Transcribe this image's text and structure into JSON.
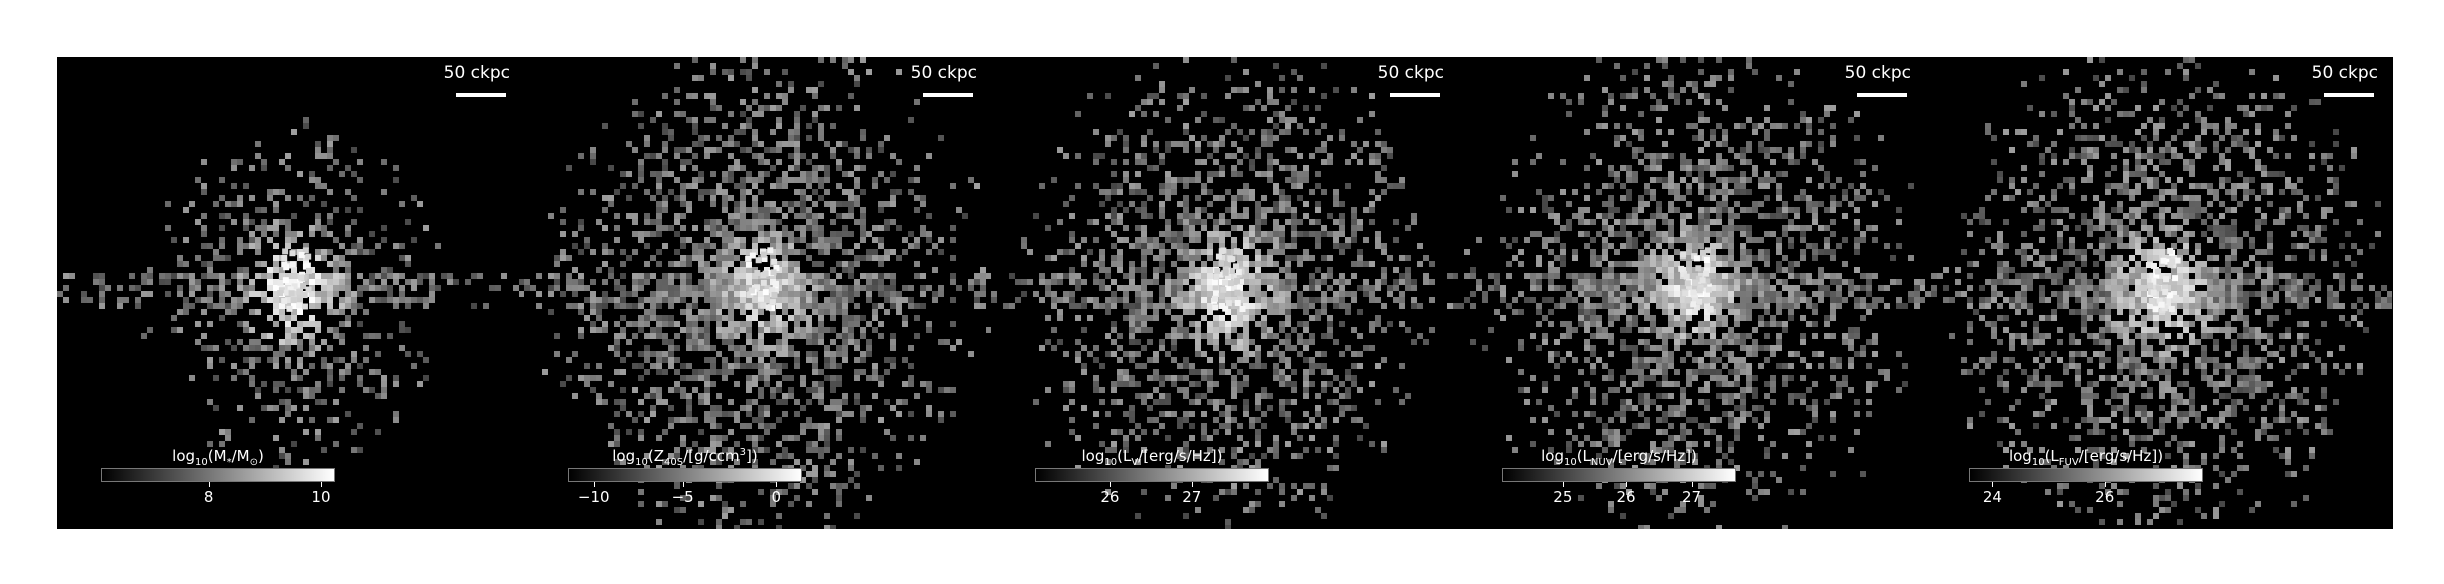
{
  "scale_bar_label": "50 ckpc",
  "panels": [
    {
      "id": "stellar-mass",
      "colorbar_label": {
        "pre": "log",
        "sub": "10",
        "mid": "(M",
        "mid_sub": "*",
        "post": "/M",
        "post_sub": "⊙",
        "end": ")"
      },
      "ticks": [
        {
          "label": "8",
          "pos": 0.46
        },
        {
          "label": "10",
          "pos": 0.94
        }
      ],
      "seed": 11,
      "spread": 0.55,
      "core": 1.0
    },
    {
      "id": "metallicity",
      "colorbar_label": {
        "pre": "log",
        "sub": "10",
        "mid": "(Z",
        "mid_sub": "40S",
        "post": "/[g/ccm",
        "post_sup": "3",
        "end": "])"
      },
      "ticks": [
        {
          "label": "−10",
          "pos": 0.11
        },
        {
          "label": "−5",
          "pos": 0.49
        },
        {
          "label": "0",
          "pos": 0.89
        }
      ],
      "seed": 23,
      "spread": 0.9,
      "core": 0.75
    },
    {
      "id": "luminosity-v",
      "colorbar_label": {
        "pre": "log",
        "sub": "10",
        "mid": "(L",
        "mid_sub": "V",
        "post": "/[erg/s/Hz])",
        "end": ""
      },
      "ticks": [
        {
          "label": "26",
          "pos": 0.32
        },
        {
          "label": "27",
          "pos": 0.67
        }
      ],
      "seed": 37,
      "spread": 0.85,
      "core": 0.95
    },
    {
      "id": "luminosity-nuv",
      "colorbar_label": {
        "pre": "log",
        "sub": "10",
        "mid": "(L",
        "mid_sub": "NUV",
        "post": "/[erg/s/Hz])",
        "end": ""
      },
      "ticks": [
        {
          "label": "25",
          "pos": 0.26
        },
        {
          "label": "26",
          "pos": 0.53
        },
        {
          "label": "27",
          "pos": 0.81
        }
      ],
      "seed": 53,
      "spread": 0.9,
      "core": 0.85
    },
    {
      "id": "luminosity-fuv",
      "colorbar_label": {
        "pre": "log",
        "sub": "10",
        "mid": "(L",
        "mid_sub": "FUV",
        "post": "/[erg/s/Hz])",
        "end": ""
      },
      "ticks": [
        {
          "label": "24",
          "pos": 0.1
        },
        {
          "label": "26",
          "pos": 0.58
        }
      ],
      "seed": 71,
      "spread": 0.9,
      "core": 0.85
    }
  ]
}
